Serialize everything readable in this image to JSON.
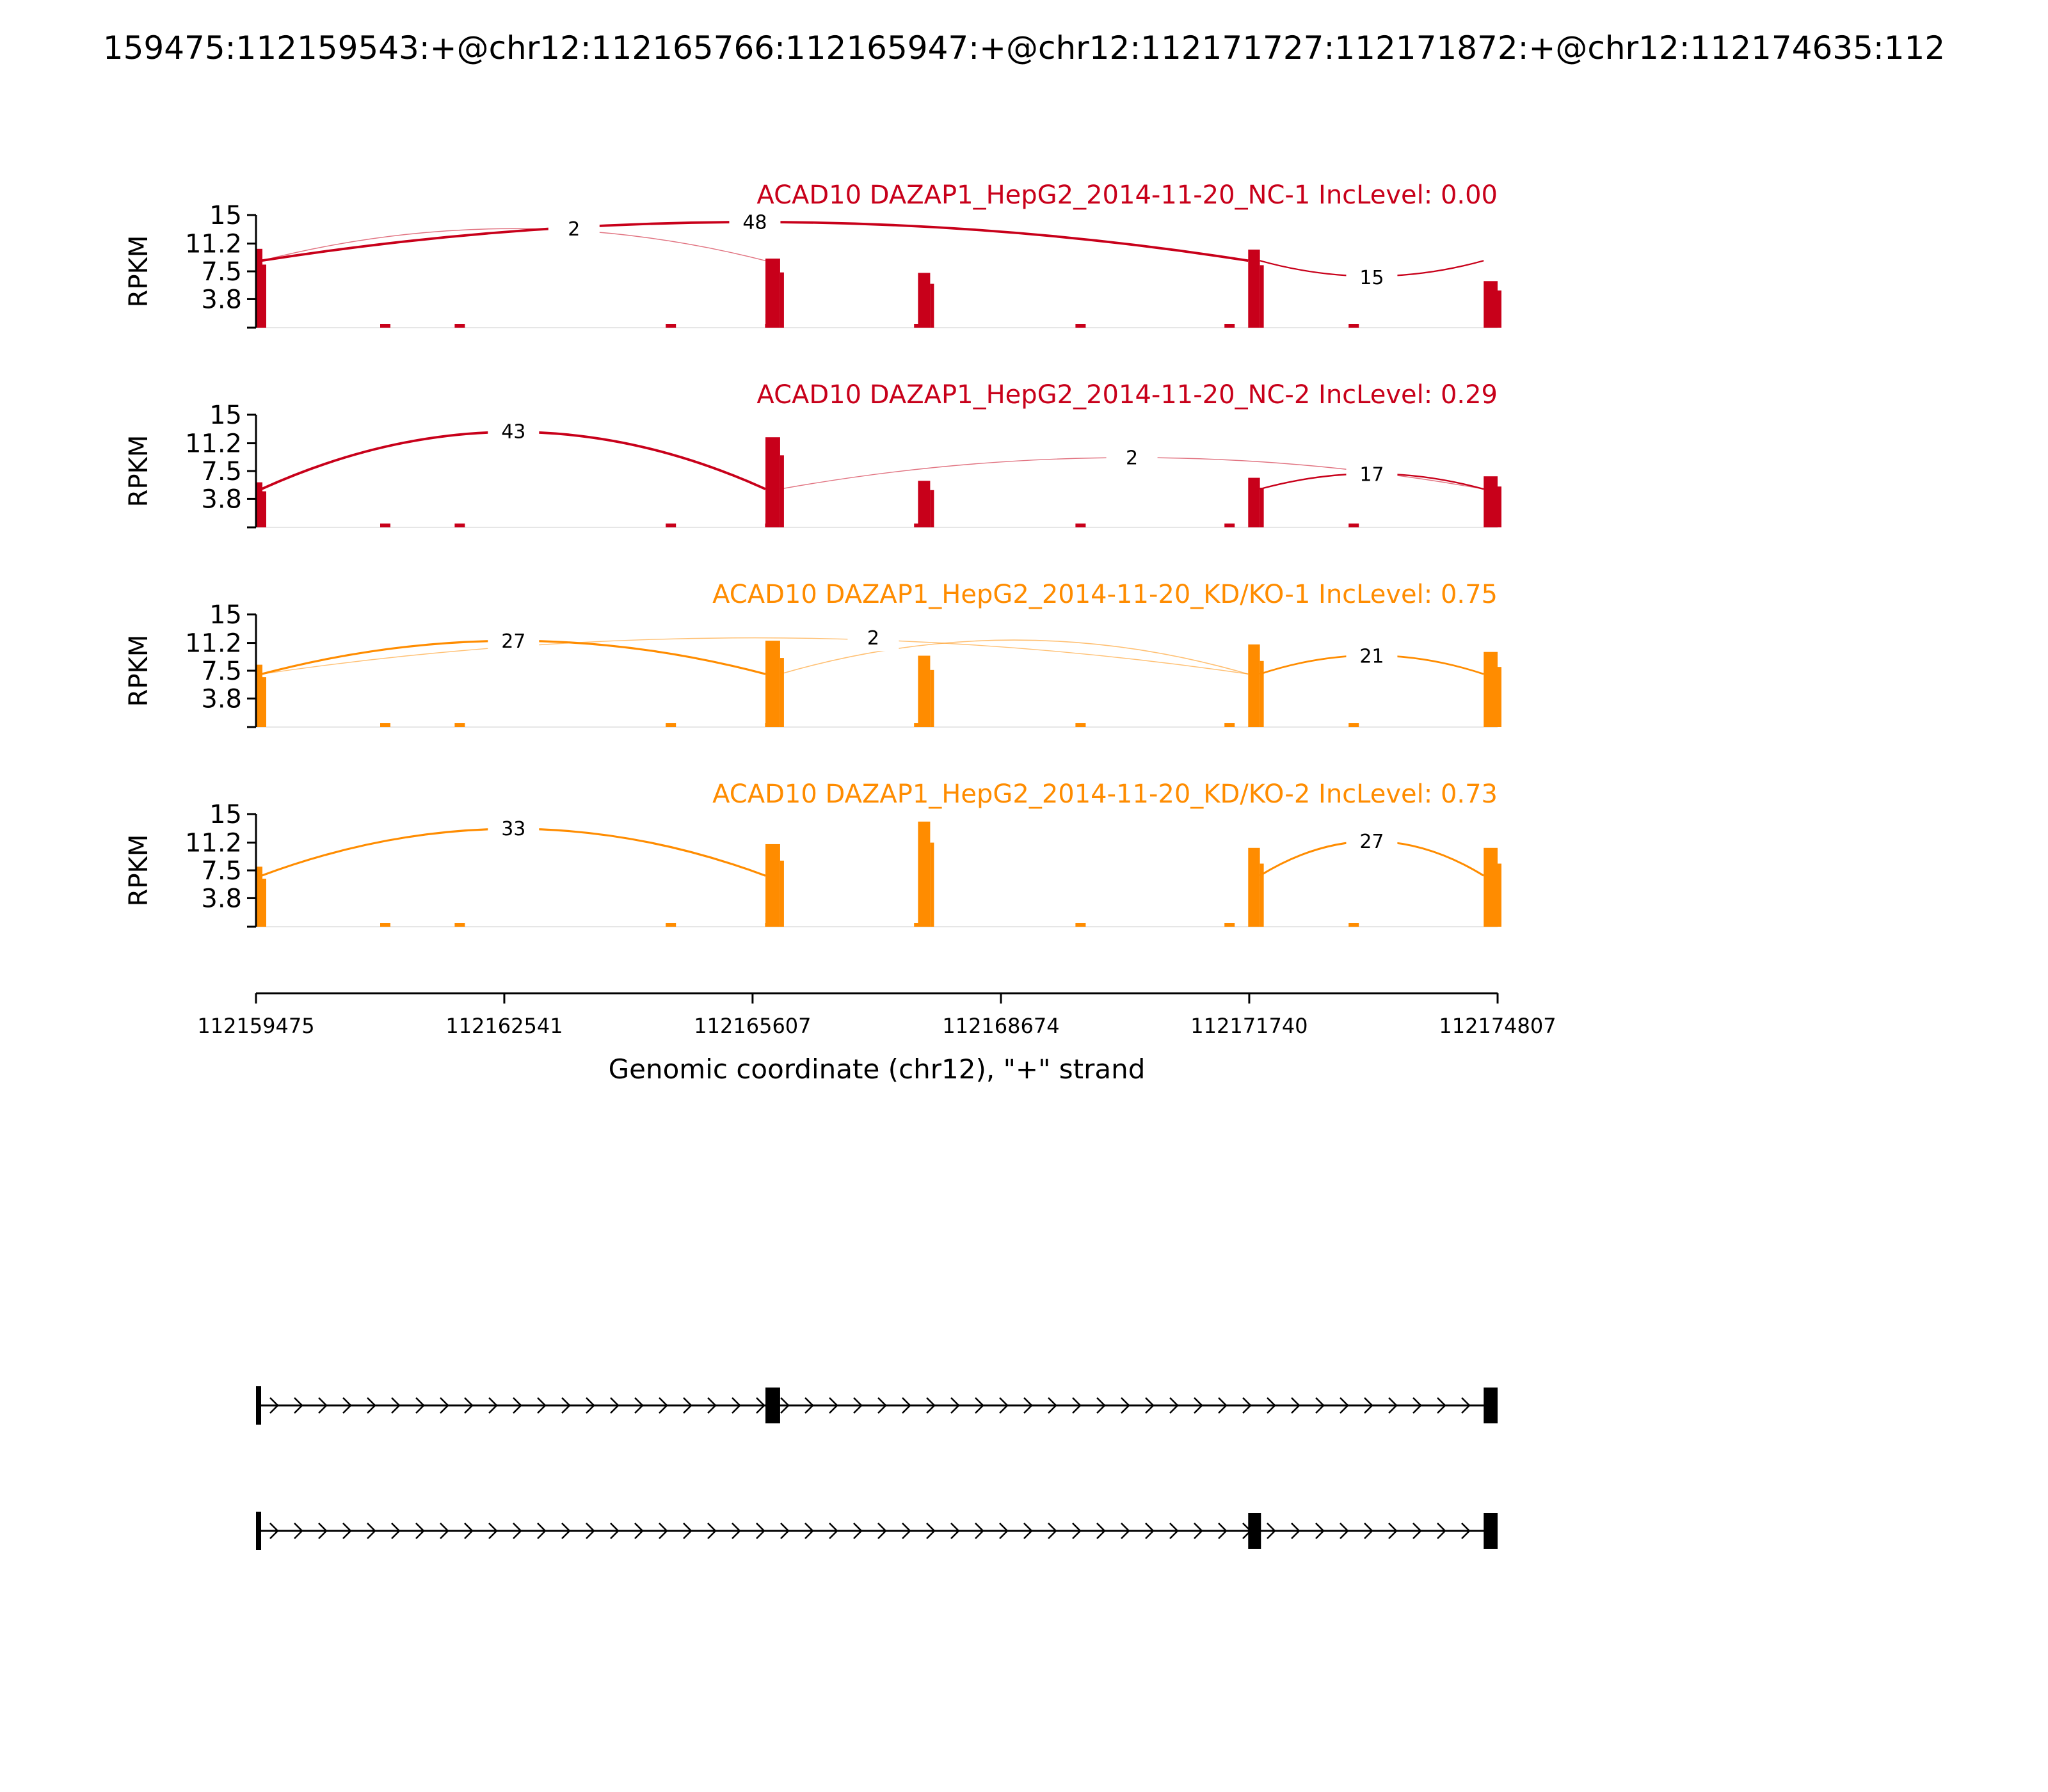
{
  "title": "159475:112159543:+@chr12:112165766:112165947:+@chr12:112171727:112171872:+@chr12:112174635:112",
  "chart_data": {
    "type": "sashimi",
    "title": "159475:112159543:+@chr12:112165766:112165947:+@chr12:112171727:112171872:+@chr12:112174635:112",
    "ylabel": "RPKM",
    "xlabel": "Genomic coordinate (chr12), \"+\" strand",
    "ylim": [
      0,
      15
    ],
    "yticks": [
      3.8,
      7.5,
      11.2,
      15
    ],
    "yticklabels": [
      "3.8",
      "7.5",
      "11.2",
      "15"
    ],
    "xlim": [
      112159475,
      112174807
    ],
    "xticks": [
      112159475,
      112162541,
      112165607,
      112168674,
      112171740,
      112174807
    ],
    "xticklabels": [
      "112159475",
      "112162541",
      "112165607",
      "112168674",
      "112171740",
      "112174807"
    ],
    "exons": [
      {
        "start": 112159475,
        "end": 112159543
      },
      {
        "start": 112165766,
        "end": 112165947
      },
      {
        "start": 112167650,
        "end": 112167800
      },
      {
        "start": 112171727,
        "end": 112171872
      },
      {
        "start": 112174635,
        "end": 112174807
      }
    ],
    "samples": [
      {
        "label": "ACAD10 DAZAP1_HepG2_2014-11-20_NC-1 IncLevel: 0.00",
        "color": "#c8001a",
        "exon_heights": [
          10.5,
          9.2,
          7.3,
          10.4,
          6.2
        ],
        "junctions": [
          {
            "from": 112159543,
            "to": 112171727,
            "count": "48",
            "height": 14.2,
            "width": 2.4
          },
          {
            "from": 112159543,
            "to": 112165766,
            "count": "2",
            "height": 13.3,
            "width": 0.9
          },
          {
            "from": 112165947,
            "to": 112174635,
            "count": "2",
            "height": 0,
            "width": 0
          },
          {
            "from": 112171872,
            "to": 112174635,
            "count": "15",
            "height": 6.8,
            "width": 1.4
          }
        ],
        "label_positions": {
          "48": 0.5,
          "2": 0.62,
          "15": 0.5
        }
      },
      {
        "label": "ACAD10 DAZAP1_HepG2_2014-11-20_NC-2 IncLevel: 0.29",
        "color": "#c8001a",
        "exon_heights": [
          6.0,
          12.0,
          6.2,
          6.6,
          6.8
        ],
        "junctions": [
          {
            "from": 112159543,
            "to": 112165766,
            "count": "43",
            "height": 12.9,
            "width": 2.4
          },
          {
            "from": 112165947,
            "to": 112174635,
            "count": "2",
            "height": 9.4,
            "width": 0.9
          },
          {
            "from": 112171872,
            "to": 112174635,
            "count": "17",
            "height": 7.2,
            "width": 1.5
          }
        ],
        "label_positions": {
          "43": 0.5,
          "2": 0.5,
          "17": 0.5
        }
      },
      {
        "label": "ACAD10 DAZAP1_HepG2_2014-11-20_KD/KO-1 IncLevel: 0.75",
        "color": "#ff8c00",
        "exon_heights": [
          8.3,
          11.5,
          9.5,
          11.0,
          10.0
        ],
        "junctions": [
          {
            "from": 112159543,
            "to": 112165766,
            "count": "27",
            "height": 11.6,
            "width": 2.0
          },
          {
            "from": 112159543,
            "to": 112171727,
            "count": "2",
            "height": 12.0,
            "width": 0.9
          },
          {
            "from": 112165947,
            "to": 112171727,
            "count": "",
            "height": 11.7,
            "width": 1.0
          },
          {
            "from": 112171872,
            "to": 112174635,
            "count": "21",
            "height": 9.6,
            "width": 1.7
          }
        ],
        "label_positions": {
          "27": 0.5,
          "2": 0.62,
          "21": 0.5
        }
      },
      {
        "label": "ACAD10 DAZAP1_HepG2_2014-11-20_KD/KO-2 IncLevel: 0.73",
        "color": "#ff8c00",
        "exon_heights": [
          8.0,
          11.0,
          14.0,
          10.5,
          10.5
        ],
        "junctions": [
          {
            "from": 112159543,
            "to": 112165766,
            "count": "33",
            "height": 13.2,
            "width": 2.0
          },
          {
            "from": 112171872,
            "to": 112174635,
            "count": "27",
            "height": 11.5,
            "width": 1.9
          }
        ],
        "label_positions": {
          "33": 0.5,
          "27": 0.5
        }
      }
    ],
    "isoforms": [
      {
        "exons": [
          [
            112159475,
            112159543
          ],
          [
            112165766,
            112165947
          ],
          [
            112174635,
            112174807
          ]
        ]
      },
      {
        "exons": [
          [
            112159475,
            112159543
          ],
          [
            112171727,
            112171872
          ],
          [
            112174635,
            112174807
          ]
        ]
      }
    ]
  }
}
